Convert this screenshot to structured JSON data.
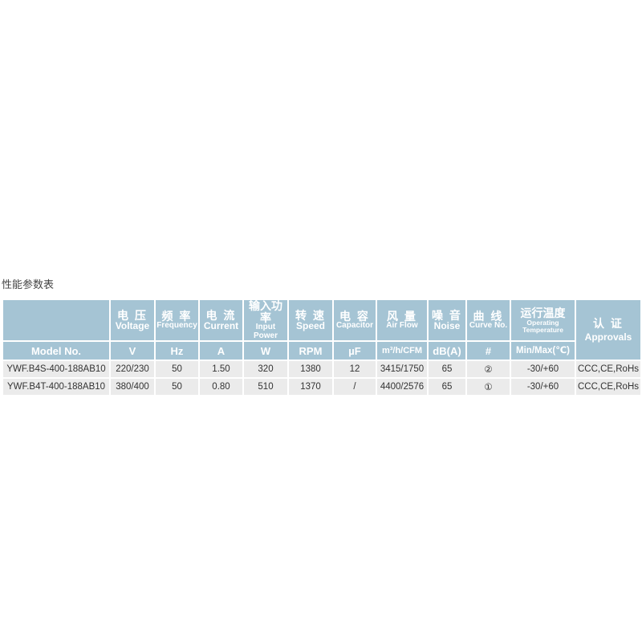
{
  "caption": "性能参数表",
  "columns": [
    {
      "cn": "",
      "en": "",
      "unit": "Model No."
    },
    {
      "cn": "电 压",
      "en": "Voltage",
      "unit": "V"
    },
    {
      "cn": "频 率",
      "en": "Frequency",
      "unit": "Hz"
    },
    {
      "cn": "电 流",
      "en": "Current",
      "unit": "A"
    },
    {
      "cn": "输入功率",
      "en": "Input Power",
      "unit": "W"
    },
    {
      "cn": "转 速",
      "en": "Speed",
      "unit": "RPM"
    },
    {
      "cn": "电 容",
      "en": "Capacitor",
      "unit": "µF"
    },
    {
      "cn": "风 量",
      "en": "Air Flow",
      "unit": "m³/h/CFM"
    },
    {
      "cn": "噪 音",
      "en": "Noise",
      "unit": "dB(A)"
    },
    {
      "cn": "曲 线",
      "en": "Curve No.",
      "unit": "#"
    },
    {
      "cn": "运行温度",
      "en": "Operating Temperature",
      "unit": "Min/Max(℃)"
    },
    {
      "cn": "认 证",
      "en": "Approvals",
      "unit": ""
    }
  ],
  "rows": [
    [
      "YWF.B4S-400-188AB10",
      "220/230",
      "50",
      "1.50",
      "320",
      "1380",
      "12",
      "3415/1750",
      "65",
      "②",
      "-30/+60",
      "CCC,CE,RoHs"
    ],
    [
      "YWF.B4T-400-188AB10",
      "380/400",
      "50",
      "0.80",
      "510",
      "1370",
      "/",
      "4400/2576",
      "65",
      "①",
      "-30/+60",
      "CCC,CE,RoHs"
    ]
  ],
  "colors": {
    "header_bg": "#a5c4d4",
    "row_bg": "#ebebeb"
  }
}
